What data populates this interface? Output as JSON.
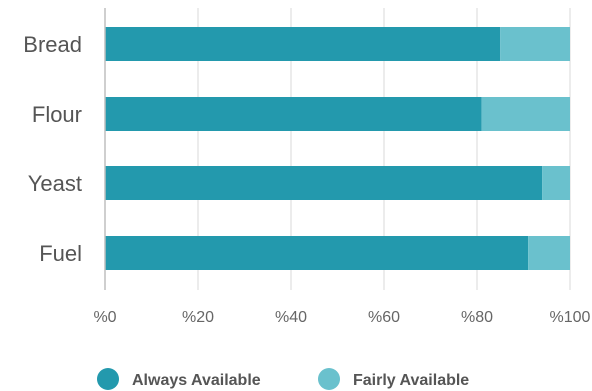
{
  "chart_data": {
    "type": "bar",
    "orientation": "horizontal",
    "stacked": true,
    "categories": [
      "Bread",
      "Flour",
      "Yeast",
      "Fuel"
    ],
    "series": [
      {
        "name": "Always Available",
        "values": [
          85,
          81,
          94,
          91
        ],
        "color": "#2399ad"
      },
      {
        "name": "Fairly Available",
        "values": [
          15,
          19,
          6,
          9
        ],
        "color": "#6ac1cd"
      }
    ],
    "xlim": [
      0,
      100
    ],
    "xticks": [
      "%0",
      "%20",
      "%40",
      "%60",
      "%80",
      "%100"
    ],
    "grid": true,
    "legend_position": "bottom"
  }
}
